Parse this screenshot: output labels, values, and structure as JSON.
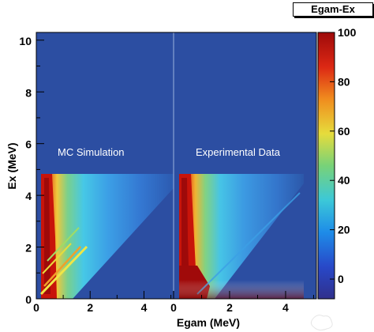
{
  "histogram_title": "Egam-Ex",
  "chart_data": [
    {
      "type": "heatmap",
      "title": "",
      "annotation": "MC Simulation",
      "xlabel": "Egam (MeV)",
      "ylabel": "Ex (MeV)",
      "xlim": [
        0,
        5.1
      ],
      "ylim": [
        0,
        10.3
      ],
      "x_ticks": [
        0,
        2,
        4
      ],
      "y_ticks": [
        0,
        2,
        4,
        6,
        8,
        10
      ],
      "populated_ex_max": 4.8
    },
    {
      "type": "heatmap",
      "title": "",
      "annotation": "Experimental Data",
      "xlabel": "Egam (MeV)",
      "ylabel": "",
      "xlim": [
        0,
        5.1
      ],
      "ylim": [
        0,
        10.3
      ],
      "x_ticks": [
        0,
        2,
        4
      ],
      "populated_ex_max": 4.8
    }
  ],
  "colorbar": {
    "min": -8,
    "max": 100,
    "ticks": [
      0,
      20,
      40,
      60,
      80,
      100
    ],
    "palette": [
      "#30308c",
      "#2848c8",
      "#1e8ce8",
      "#3cc8d8",
      "#78d278",
      "#e6dc3c",
      "#f08c1e",
      "#dc2814",
      "#9e0a0a"
    ]
  },
  "background_color": "#2c4ea2"
}
